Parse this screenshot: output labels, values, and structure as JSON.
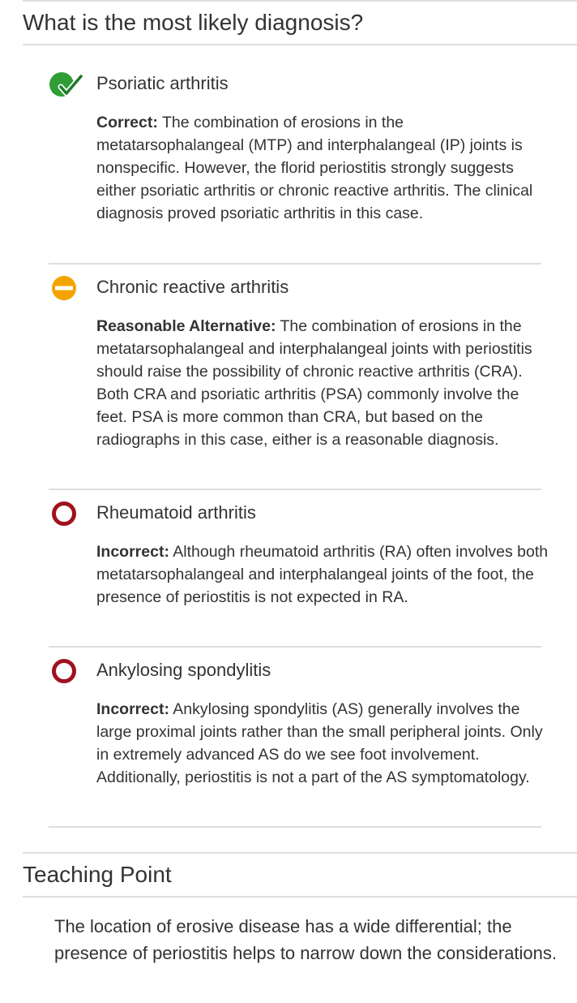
{
  "question": {
    "title": "What is the most likely diagnosis?"
  },
  "options": [
    {
      "label": "Psoriatic arthritis",
      "status": "correct",
      "icon": "check-circle-icon",
      "verdict": "Correct:",
      "text": "The combination of erosions in the metatarsophalangeal (MTP) and interphalangeal (IP) joints is nonspecific. However, the florid periostitis strongly suggests either psoriatic arthritis or chronic reactive arthritis. The clinical diagnosis proved psoriatic arthritis in this case."
    },
    {
      "label": "Chronic reactive arthritis",
      "status": "reasonable",
      "icon": "minus-circle-icon",
      "verdict": "Reasonable Alternative:",
      "text": "The combination of erosions in the metatarsophalangeal and interphalangeal joints with periostitis should raise the possibility of chronic reactive arthritis (CRA). Both CRA and psoriatic arthritis (PSA) commonly involve the feet. PSA is more common than CRA, but based on the radiographs in this case, either is a reasonable diagnosis."
    },
    {
      "label": "Rheumatoid arthritis",
      "status": "incorrect",
      "icon": "ring-icon",
      "verdict": "Incorrect:",
      "text": "Although rheumatoid arthritis (RA) often involves both metatarsophalangeal and interphalangeal joints of the foot, the presence of periostitis is not expected in RA."
    },
    {
      "label": "Ankylosing spondylitis",
      "status": "incorrect",
      "icon": "ring-icon",
      "verdict": "Incorrect:",
      "text": "Ankylosing spondylitis (AS) generally involves the large proximal joints rather than the small peripheral joints. Only in extremely advanced AS do we see foot involvement. Additionally, periostitis is not a part of the AS symptomatology."
    }
  ],
  "teaching_point": {
    "title": "Teaching Point",
    "text": "The location of erosive disease has a wide differential; the presence of periostitis helps to narrow down the considerations."
  },
  "colors": {
    "correct": "#2e9e35",
    "correct_check": "#1f7a27",
    "reasonable": "#f4a400",
    "incorrect": "#a0121f",
    "rule": "#dedede",
    "text": "#333333"
  }
}
